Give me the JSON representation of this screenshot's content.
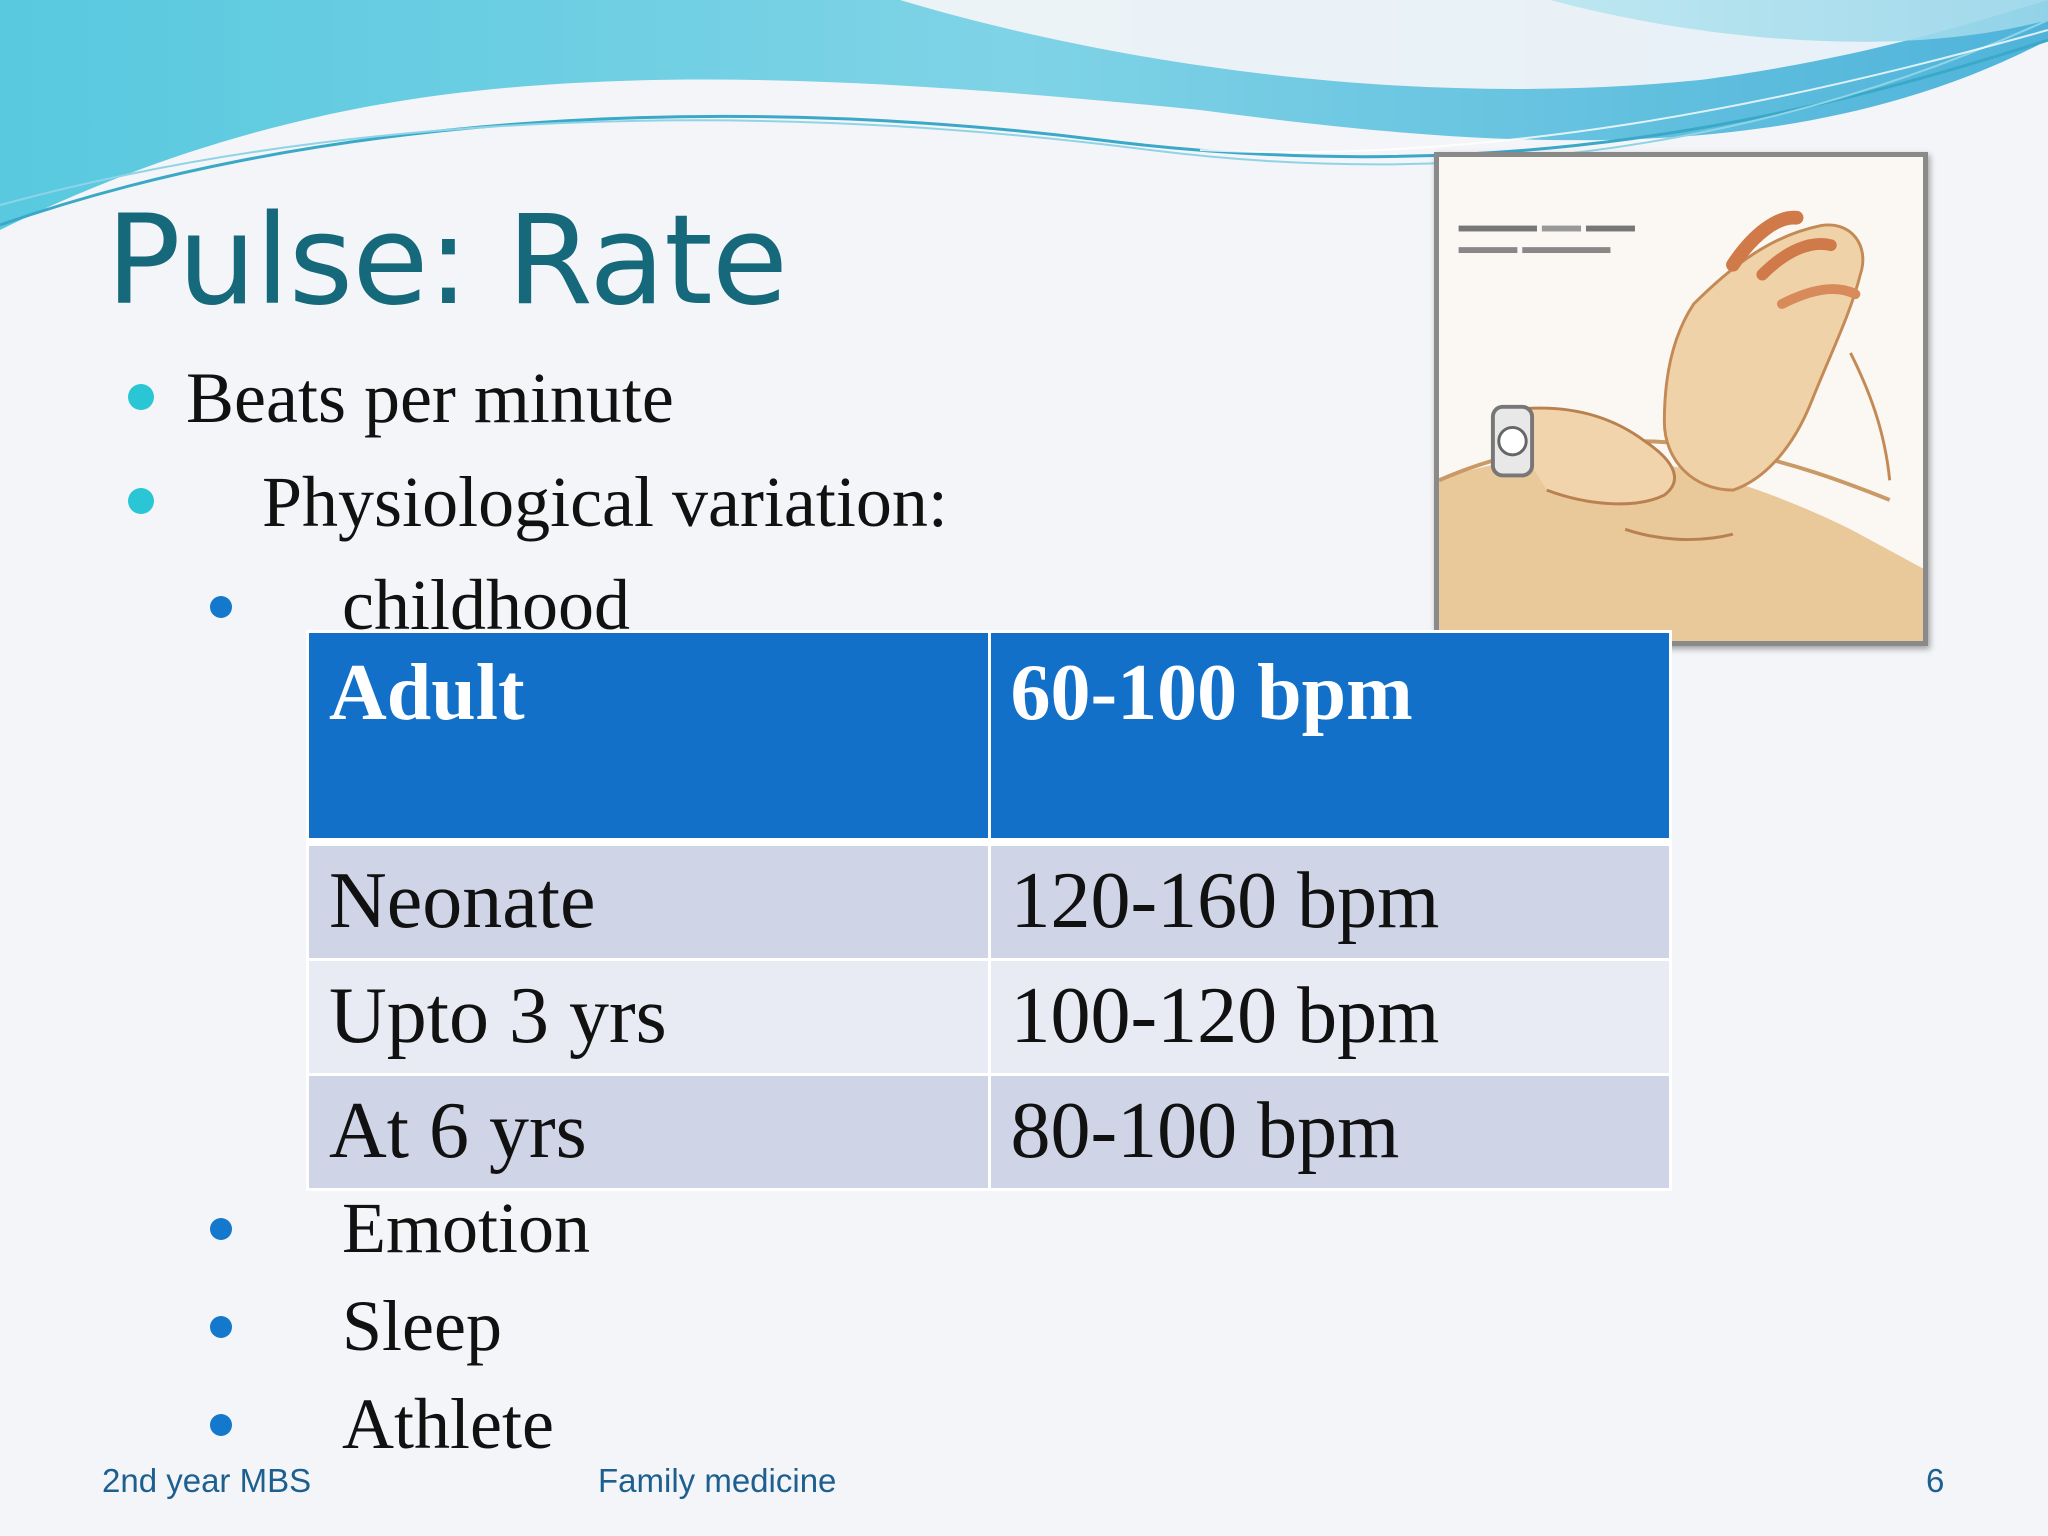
{
  "slide": {
    "title": "Pulse: Rate",
    "bullets": [
      {
        "text": "Beats  per minute"
      },
      {
        "text": "Physiological variation:"
      }
    ],
    "sub_bullets_top": [
      {
        "text": "childhood"
      }
    ],
    "sub_bullets_bottom": [
      {
        "text": "Emotion"
      },
      {
        "text": "Sleep"
      },
      {
        "text": "Athlete"
      }
    ],
    "table": {
      "header": [
        "Adult",
        "60-100 bpm"
      ],
      "rows": [
        [
          "Neonate",
          "120-160 bpm"
        ],
        [
          "Upto 3 yrs",
          "100-120 bpm"
        ],
        [
          "At 6 yrs",
          "80-100 bpm"
        ]
      ]
    },
    "image": {
      "icon": "pulse-check-wrist-illustration"
    }
  },
  "footer": {
    "left": "2nd year MBS",
    "center": "Family medicine",
    "page_number": "6"
  },
  "colors": {
    "title": "#16697a",
    "table_header": "#1370c9",
    "table_row_odd": "#cfd5e7",
    "table_row_even": "#e8ebf4",
    "bullet_level1": "#2ac6d6",
    "bullet_level2": "#1478cc",
    "footer_text": "#1d5f8f"
  }
}
